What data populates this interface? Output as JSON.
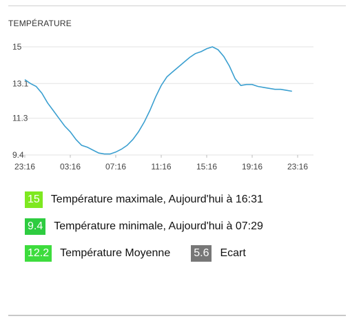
{
  "panel": {
    "title": "TEMPÉRATURE"
  },
  "colors": {
    "line": "#3a9fd0",
    "badge_max": "#7ee820",
    "badge_min": "#2ecc40",
    "badge_avg": "#3ddc3d",
    "badge_gap": "#777777"
  },
  "chart_data": {
    "type": "line",
    "title": "",
    "xlabel": "",
    "ylabel": "",
    "x_ticks": [
      "23:16",
      "03:16",
      "07:16",
      "11:16",
      "15:16",
      "19:16",
      "23:16"
    ],
    "y_ticks": [
      9.4,
      11.3,
      13.1,
      15
    ],
    "ylim": [
      9.4,
      15
    ],
    "grid": true,
    "x_hours": [
      0,
      0.5,
      1,
      1.5,
      2,
      2.5,
      3,
      3.5,
      4,
      4.5,
      5,
      5.5,
      6,
      6.5,
      7,
      7.5,
      8,
      8.5,
      9,
      9.5,
      10,
      10.5,
      11,
      11.5,
      12,
      12.5,
      13,
      13.5,
      14,
      14.5,
      15,
      15.5,
      16,
      16.5,
      17,
      17.5,
      18,
      18.5,
      19,
      19.5,
      20,
      20.5,
      21,
      21.5,
      22,
      22.5,
      23,
      23.5
    ],
    "series": [
      {
        "values": [
          13.3,
          13.1,
          12.95,
          12.6,
          12.1,
          11.7,
          11.3,
          10.9,
          10.6,
          10.2,
          9.9,
          9.8,
          9.65,
          9.5,
          9.45,
          9.45,
          9.55,
          9.7,
          9.9,
          10.2,
          10.6,
          11.1,
          11.7,
          12.4,
          13.0,
          13.45,
          13.7,
          13.95,
          14.2,
          14.45,
          14.65,
          14.75,
          14.9,
          15.0,
          14.85,
          14.5,
          14.0,
          13.35,
          13.0,
          13.05,
          13.05,
          12.95,
          12.9,
          12.85,
          12.8,
          12.8,
          12.75,
          12.7
        ]
      }
    ]
  },
  "stats": {
    "max_value": "15",
    "max_label": "Température maximale, Aujourd'hui à 16:31",
    "min_value": "9.4",
    "min_label": "Température minimale, Aujourd'hui à 07:29",
    "avg_value": "12.2",
    "avg_label": "Température Moyenne",
    "gap_value": "5.6",
    "gap_label": "Ecart"
  }
}
